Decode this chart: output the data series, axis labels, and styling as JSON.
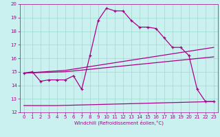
{
  "xlabel": "Windchill (Refroidissement éolien,°C)",
  "bg_color": "#caf0f0",
  "grid_color": "#99ddcc",
  "line_color": "#aa0088",
  "xlim": [
    -0.5,
    23.5
  ],
  "ylim": [
    12,
    20
  ],
  "xticks": [
    0,
    1,
    2,
    3,
    4,
    5,
    6,
    7,
    8,
    9,
    10,
    11,
    12,
    13,
    14,
    15,
    16,
    17,
    18,
    19,
    20,
    21,
    22,
    23
  ],
  "yticks": [
    12,
    13,
    14,
    15,
    16,
    17,
    18,
    19,
    20
  ],
  "line1": {
    "x": [
      0,
      1,
      2,
      3,
      4,
      5,
      6,
      7,
      8,
      9,
      10,
      11,
      12,
      13,
      14,
      15,
      16,
      17,
      18,
      19,
      20,
      21,
      22,
      23
    ],
    "y": [
      14.9,
      15.0,
      14.3,
      14.4,
      14.4,
      14.4,
      14.7,
      13.7,
      16.2,
      18.8,
      19.7,
      19.5,
      19.5,
      18.8,
      18.3,
      18.3,
      18.2,
      17.5,
      16.8,
      16.8,
      16.2,
      13.7,
      12.8,
      12.8
    ]
  },
  "line2": {
    "x": [
      0,
      5,
      23
    ],
    "y": [
      14.9,
      15.1,
      16.8
    ]
  },
  "line3": {
    "x": [
      0,
      5,
      23
    ],
    "y": [
      14.9,
      15.0,
      16.1
    ]
  },
  "line4": {
    "x": [
      0,
      4,
      23
    ],
    "y": [
      12.5,
      12.5,
      12.8
    ]
  },
  "xlabel_fontsize": 5,
  "tick_fontsize": 5
}
